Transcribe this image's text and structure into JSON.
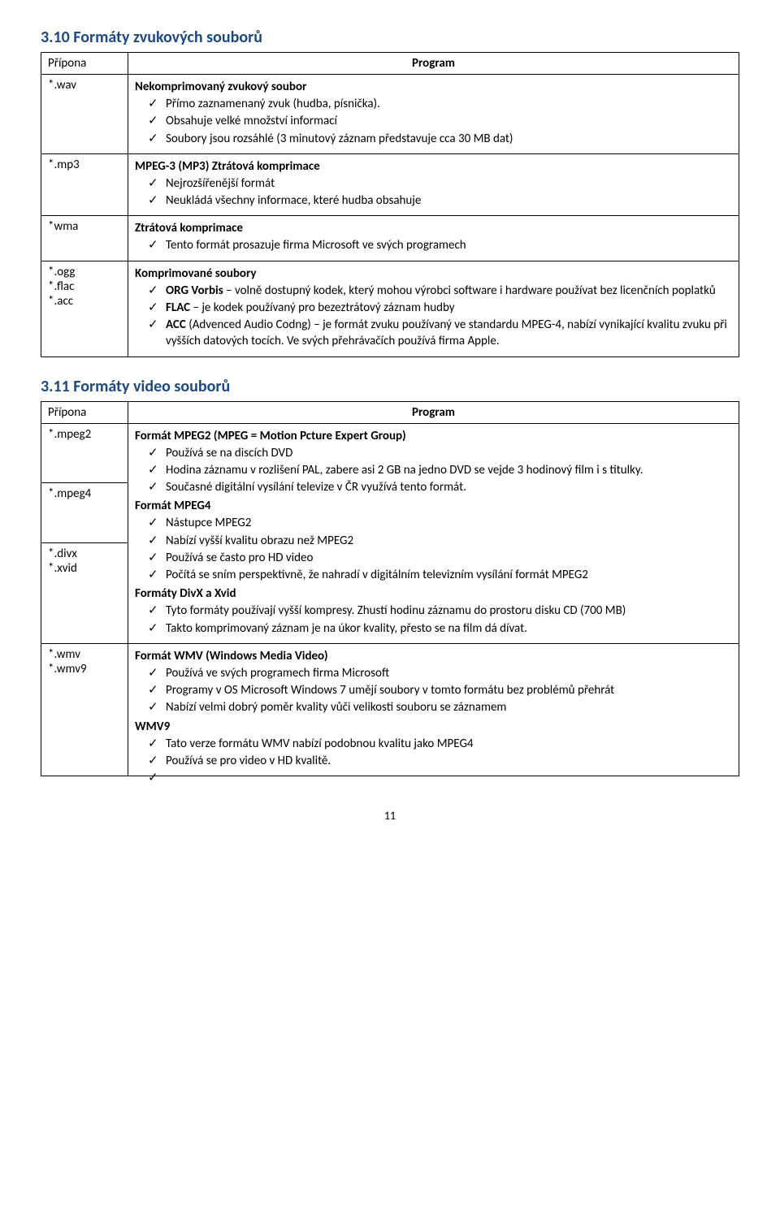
{
  "section1": {
    "heading": "3.10 Formáty zvukových souborů",
    "col_ext": "Přípona",
    "col_prog": "Program",
    "rows": [
      {
        "ext": "*.wav",
        "group": "Nekomprimovaný zvukový soubor",
        "items": [
          "Přímo zaznamenaný zvuk (hudba, písnička).",
          "Obsahuje velké množství informací",
          "Soubory jsou rozsáhlé (3 minutový záznam představuje cca 30 MB dat)"
        ]
      },
      {
        "ext": "*.mp3",
        "group": "MPEG-3 (MP3) Ztrátová komprimace",
        "items": [
          "Nejrozšířenější formát",
          "Neukládá všechny informace, které hudba obsahuje"
        ]
      },
      {
        "ext": "*wma",
        "group": "Ztrátová komprimace",
        "items": [
          "Tento formát prosazuje firma Microsoft ve svých programech"
        ]
      },
      {
        "ext": "*.ogg\n*.flac\n*.acc",
        "group": "Komprimované soubory",
        "items_html": [
          "<b>ORG Vorbis</b> – volně dostupný kodek, který mohou výrobci software i hardware používat bez licenčních poplatků",
          "<b>FLAC</b> – je kodek používaný pro bezeztrátový záznam hudby",
          "<b>ACC</b> (Advenced Audio Codng) – je formát zvuku používaný ve standardu MPEG-4, nabízí vynikající kvalitu zvuku při vyšších datových tocích. Ve svých přehrávačích používá firma Apple."
        ]
      }
    ]
  },
  "section2": {
    "heading": "3.11 Formáty video souborů",
    "col_ext": "Přípona",
    "col_prog": "Program",
    "rows": [
      {
        "ext": "*.mpeg2",
        "group_html": "<b>Formát MPEG2</b> (MPEG = <b>M</b>otion <b>P</b>cture <b>E</b>xpert <b>G</b>roup)",
        "items": [
          "Používá se na discích DVD",
          "Hodina záznamu v rozlišení PAL, zabere asi 2 GB  na jedno DVD se vejde 3 hodinový film i s titulky.",
          "Současné digitální vysílání televize v ČR využívá tento formát."
        ]
      },
      {
        "ext": "*.mpeg4",
        "group_html": "<b>Formát MPEG4</b>",
        "items": [
          "Nástupce MPEG2",
          "Nabízí vyšší kvalitu obrazu než MPEG2",
          "Používá se často pro HD video",
          "Počítá se sním perspektivně, že nahradí v digitálním televizním vysílání formát MPEG2"
        ]
      },
      {
        "ext": "*.divx\n*.xvid",
        "group_html": "<b>Formáty DivX</b> a <b>Xvid</b>",
        "items": [
          "Tyto formáty používají vyšší kompresy. Zhustí hodinu záznamu do prostoru disku CD (700 MB)",
          "Takto komprimovaný záznam je na úkor kvality, přesto se na film dá dívat."
        ]
      },
      {
        "ext": "*.wmv\n*.wmv9",
        "group_html": "<b>Formát WMV (W</b>indows <b>M</b>edia <b>V</b>ideo<b>)</b>",
        "items": [
          "Používá ve svých programech firma Microsoft",
          "Programy v OS Microsoft Windows 7 umějí soubory v tomto formátu bez problémů přehrát",
          "Nabízí velmi dobrý poměr kvality vůči  velikosti souboru se záznamem"
        ],
        "group2": "WMV9",
        "items2": [
          "Tato verze formátu WMV nabízí podobnou kvalitu jako MPEG4",
          "Používá se pro video v HD kvalitě.",
          ""
        ]
      }
    ]
  },
  "page_number": "11"
}
